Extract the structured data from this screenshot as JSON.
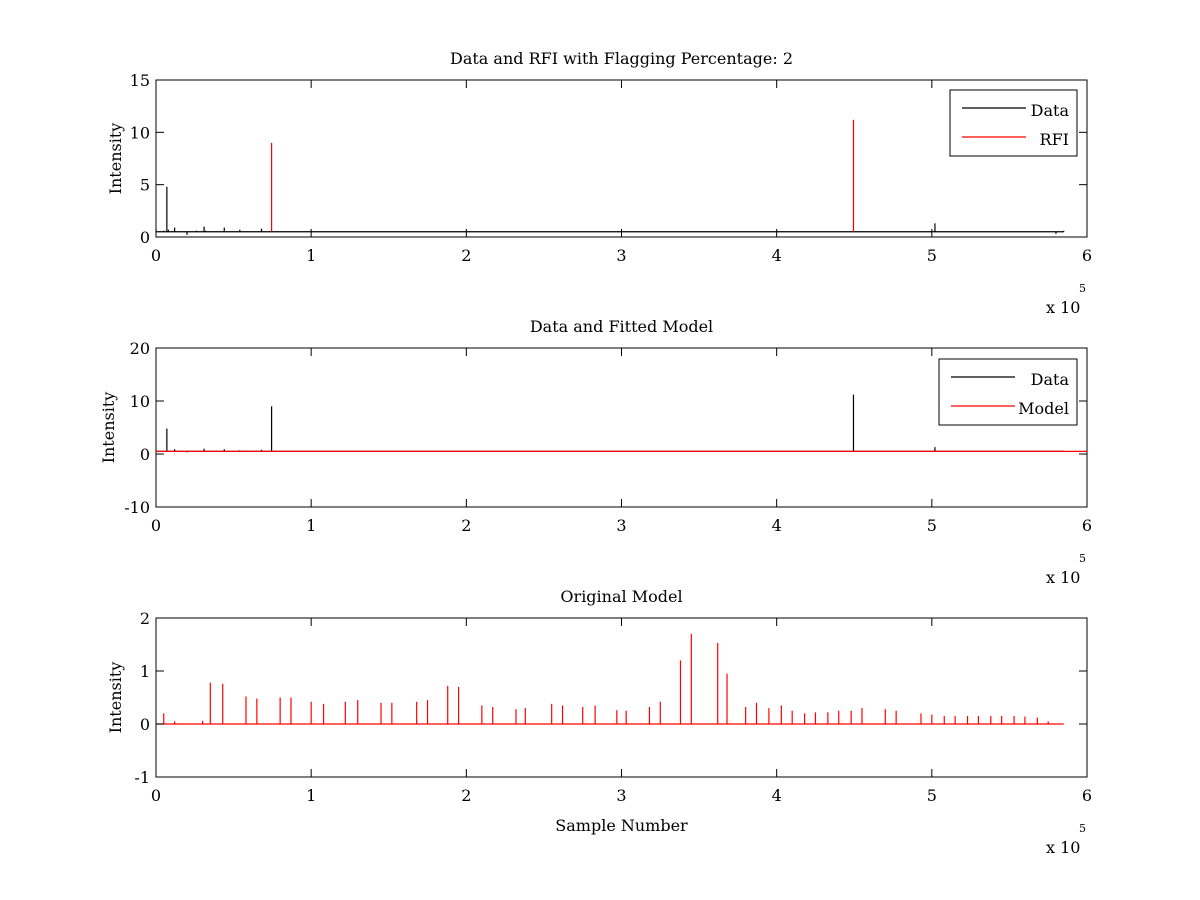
{
  "colors": {
    "data": "#000000",
    "rfi": "#ff0000",
    "model": "#ff0000",
    "axes": "#000000",
    "background": "#ffffff"
  },
  "chart_data": [
    {
      "type": "line",
      "title": "Data and RFI with Flagging Percentage: 2",
      "xlabel": "",
      "ylabel": "Intensity",
      "xlim": [
        0,
        600000
      ],
      "ylim": [
        0,
        15
      ],
      "xticks": [
        0,
        1,
        2,
        3,
        4,
        5,
        6
      ],
      "yticks": [
        0,
        5,
        10,
        15
      ],
      "x_multiplier": "x 10",
      "x_multiplier_exponent": "5",
      "legend": {
        "position": "top-right",
        "entries": [
          "Data",
          "RFI"
        ]
      },
      "series": [
        {
          "name": "Data",
          "color": "#000000",
          "baseline": 0.5,
          "x": [
            0,
            5000,
            7000,
            8000,
            9000,
            12000,
            20000,
            26000,
            31000,
            32000,
            44000,
            54000,
            68000,
            100000,
            200000,
            300000,
            400000,
            500000,
            502000,
            580000,
            585000
          ],
          "y": [
            0.8,
            0.6,
            4.8,
            0.7,
            0.5,
            0.9,
            0.2,
            0.6,
            1.0,
            0.6,
            0.9,
            0.7,
            0.8,
            0.5,
            0.5,
            0.5,
            0.5,
            0.5,
            1.3,
            0.3,
            0.6
          ]
        },
        {
          "name": "RFI",
          "color": "#ff0000",
          "x": [
            74500,
            449500
          ],
          "y": [
            9.0,
            11.2
          ]
        }
      ]
    },
    {
      "type": "line",
      "title": "Data and Fitted Model",
      "xlabel": "",
      "ylabel": "Intensity",
      "xlim": [
        0,
        600000
      ],
      "ylim": [
        -10,
        20
      ],
      "xticks": [
        0,
        1,
        2,
        3,
        4,
        5,
        6
      ],
      "yticks": [
        -10,
        0,
        10,
        20
      ],
      "x_multiplier": "x 10",
      "x_multiplier_exponent": "5",
      "legend": {
        "position": "top-right",
        "entries": [
          "Data",
          "Model"
        ]
      },
      "series": [
        {
          "name": "Data",
          "color": "#000000",
          "baseline": 0.5,
          "x": [
            7000,
            12000,
            20000,
            31000,
            44000,
            54000,
            68000,
            74500,
            449500,
            502000
          ],
          "y": [
            4.8,
            0.9,
            0.3,
            1.0,
            0.9,
            0.7,
            0.8,
            9.0,
            11.2,
            1.3
          ]
        },
        {
          "name": "Model",
          "color": "#ff0000",
          "x": [
            0,
            600000
          ],
          "y": [
            0.5,
            0.5
          ]
        }
      ]
    },
    {
      "type": "line",
      "title": "Original Model",
      "xlabel": "Sample Number",
      "ylabel": "Intensity",
      "xlim": [
        0,
        600000
      ],
      "ylim": [
        -1,
        2
      ],
      "xticks": [
        0,
        1,
        2,
        3,
        4,
        5,
        6
      ],
      "yticks": [
        -1,
        0,
        1,
        2
      ],
      "x_multiplier": "x 10",
      "x_multiplier_exponent": "5",
      "legend": null,
      "series": [
        {
          "name": "",
          "color": "#ff0000",
          "baseline": 0,
          "x": [
            5000,
            12000,
            30000,
            35000,
            43000,
            58000,
            65000,
            80000,
            87000,
            100000,
            108000,
            122000,
            130000,
            145000,
            152000,
            168000,
            175000,
            188000,
            195000,
            210000,
            217000,
            232000,
            238000,
            255000,
            262000,
            275000,
            283000,
            297000,
            303000,
            318000,
            325000,
            338000,
            345000,
            362000,
            368000,
            380000,
            387000,
            395000,
            403000,
            410000,
            418000,
            425000,
            433000,
            440000,
            448000,
            455000,
            470000,
            477000,
            493000,
            500000,
            508000,
            515000,
            523000,
            530000,
            538000,
            545000,
            553000,
            560000,
            568000,
            575000
          ],
          "y": [
            0.2,
            0.05,
            0.06,
            0.78,
            0.76,
            0.52,
            0.48,
            0.5,
            0.5,
            0.42,
            0.38,
            0.42,
            0.45,
            0.4,
            0.4,
            0.42,
            0.45,
            0.72,
            0.7,
            0.35,
            0.32,
            0.28,
            0.3,
            0.38,
            0.35,
            0.32,
            0.35,
            0.26,
            0.25,
            0.32,
            0.42,
            1.2,
            1.7,
            1.53,
            0.95,
            0.32,
            0.4,
            0.3,
            0.35,
            0.25,
            0.2,
            0.22,
            0.22,
            0.25,
            0.25,
            0.3,
            0.28,
            0.25,
            0.2,
            0.18,
            0.15,
            0.15,
            0.15,
            0.15,
            0.15,
            0.15,
            0.15,
            0.14,
            0.12,
            0.05
          ]
        }
      ]
    }
  ]
}
